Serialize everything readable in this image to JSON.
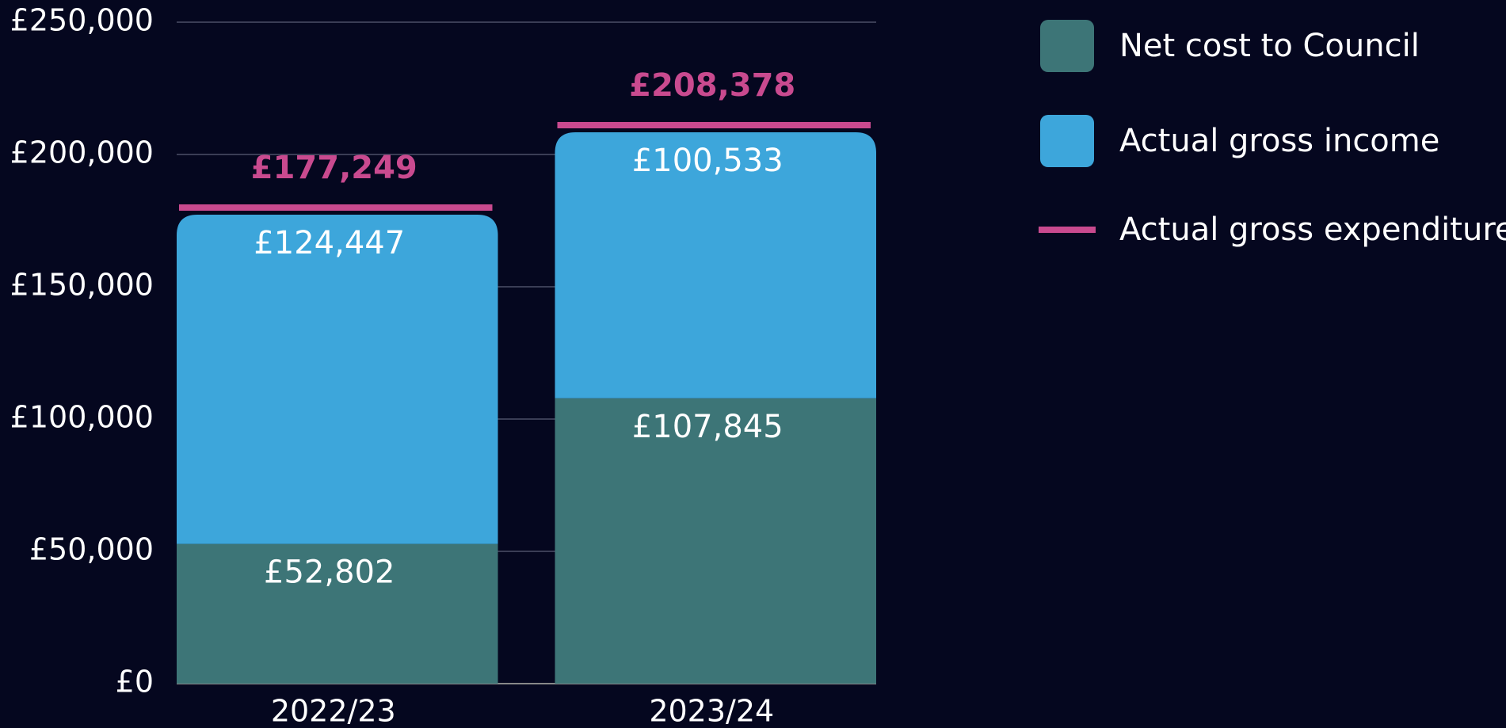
{
  "chart_data": {
    "type": "stacked_bar",
    "categories": [
      "2022/23",
      "2023/24"
    ],
    "series": [
      {
        "name": "Net cost to Council",
        "color": "#3d7577",
        "values": [
          52802,
          107845
        ],
        "value_labels": [
          "£52,802",
          "£107,845"
        ]
      },
      {
        "name": "Actual gross income",
        "color": "#3da6db",
        "values": [
          124447,
          100533
        ],
        "value_labels": [
          "£124,447",
          "£100,533"
        ]
      },
      {
        "name": "Actual gross expenditure",
        "color": "#c94a8f",
        "type": "marker",
        "values": [
          177249,
          208378
        ],
        "value_labels": [
          "£177,249",
          "£208,378"
        ]
      }
    ],
    "ylim": [
      0,
      250000
    ],
    "yticks": [
      {
        "value": 0,
        "label": "£0"
      },
      {
        "value": 50000,
        "label": "£50,000"
      },
      {
        "value": 100000,
        "label": "£100,000"
      },
      {
        "value": 150000,
        "label": "£150,000"
      },
      {
        "value": 200000,
        "label": "£200,000"
      },
      {
        "value": 250000,
        "label": "£250,000"
      }
    ],
    "grid": true,
    "legend": "right"
  }
}
